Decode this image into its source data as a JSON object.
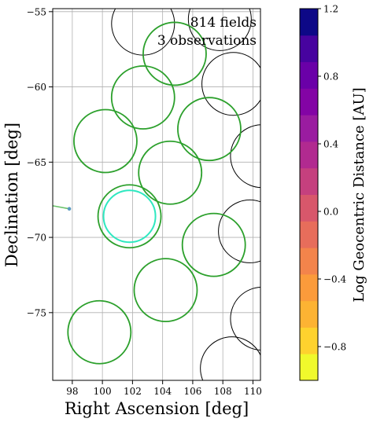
{
  "chart_data": {
    "type": "scatter",
    "xlabel": "Right Ascension [deg]",
    "ylabel": "Declination [deg]",
    "xlim": [
      96.7,
      110.5
    ],
    "ylim": [
      -79.5,
      -54.8
    ],
    "x_ticks": [
      98,
      100,
      102,
      104,
      106,
      108,
      110
    ],
    "y_ticks": [
      -55,
      -60,
      -65,
      -70,
      -75
    ],
    "x_tick_labels": [
      "98",
      "100",
      "102",
      "104",
      "106",
      "108",
      "110"
    ],
    "y_tick_labels": [
      "−55",
      "−60",
      "−65",
      "−70",
      "−75"
    ],
    "grid": true,
    "annotations": [
      {
        "text": "814 fields",
        "color": "#000000"
      },
      {
        "text": "3 observations",
        "color": "#2ee8c0"
      }
    ],
    "unobserved_fields": [
      {
        "ra": 102.7,
        "dec": -55.8
      },
      {
        "ra": 107.8,
        "dec": -55.5
      },
      {
        "ra": 108.7,
        "dec": -59.8
      },
      {
        "ra": 110.6,
        "dec": -64.6
      },
      {
        "ra": 109.8,
        "dec": -69.6
      },
      {
        "ra": 110.6,
        "dec": -75.4
      },
      {
        "ra": 108.6,
        "dec": -78.7
      }
    ],
    "observed_fields": [
      {
        "ra": 104.8,
        "dec": -57.8
      },
      {
        "ra": 102.7,
        "dec": -60.7
      },
      {
        "ra": 107.1,
        "dec": -62.8
      },
      {
        "ra": 100.2,
        "dec": -63.6
      },
      {
        "ra": 104.5,
        "dec": -65.7
      },
      {
        "ra": 101.8,
        "dec": -68.6
      },
      {
        "ra": 107.4,
        "dec": -70.5
      },
      {
        "ra": 104.2,
        "dec": -73.5
      },
      {
        "ra": 99.8,
        "dec": -76.3
      }
    ],
    "highlighted_field": {
      "ra": 101.8,
      "dec": -68.6
    },
    "track": {
      "ra": [
        96.7,
        97.8
      ],
      "dec": [
        -67.9,
        -68.1
      ]
    },
    "colorbar": {
      "label": "Log Geocentric Distance [AU]",
      "min": -1.0,
      "max": 1.2,
      "ticks": [
        1.2,
        0.8,
        0.4,
        0.0,
        -0.4,
        -0.8
      ],
      "tick_labels": [
        "1.2",
        "0.8",
        "0.4",
        "0.0",
        "−0.4",
        "−0.8"
      ],
      "colors": [
        "#f0f92c",
        "#fed22e",
        "#fdb333",
        "#fb9b3b",
        "#f3844b",
        "#e76d5b",
        "#d8576b",
        "#c5407e",
        "#b12a90",
        "#9a1ca0",
        "#8304a5",
        "#6a00a8",
        "#47039f",
        "#0d0887"
      ]
    },
    "colors": {
      "observed": "#2ca02c",
      "unobserved": "#000000",
      "highlight": "#2ee8c0",
      "track_line": "#6ac26a",
      "track_point": "#5a9ac0"
    }
  }
}
